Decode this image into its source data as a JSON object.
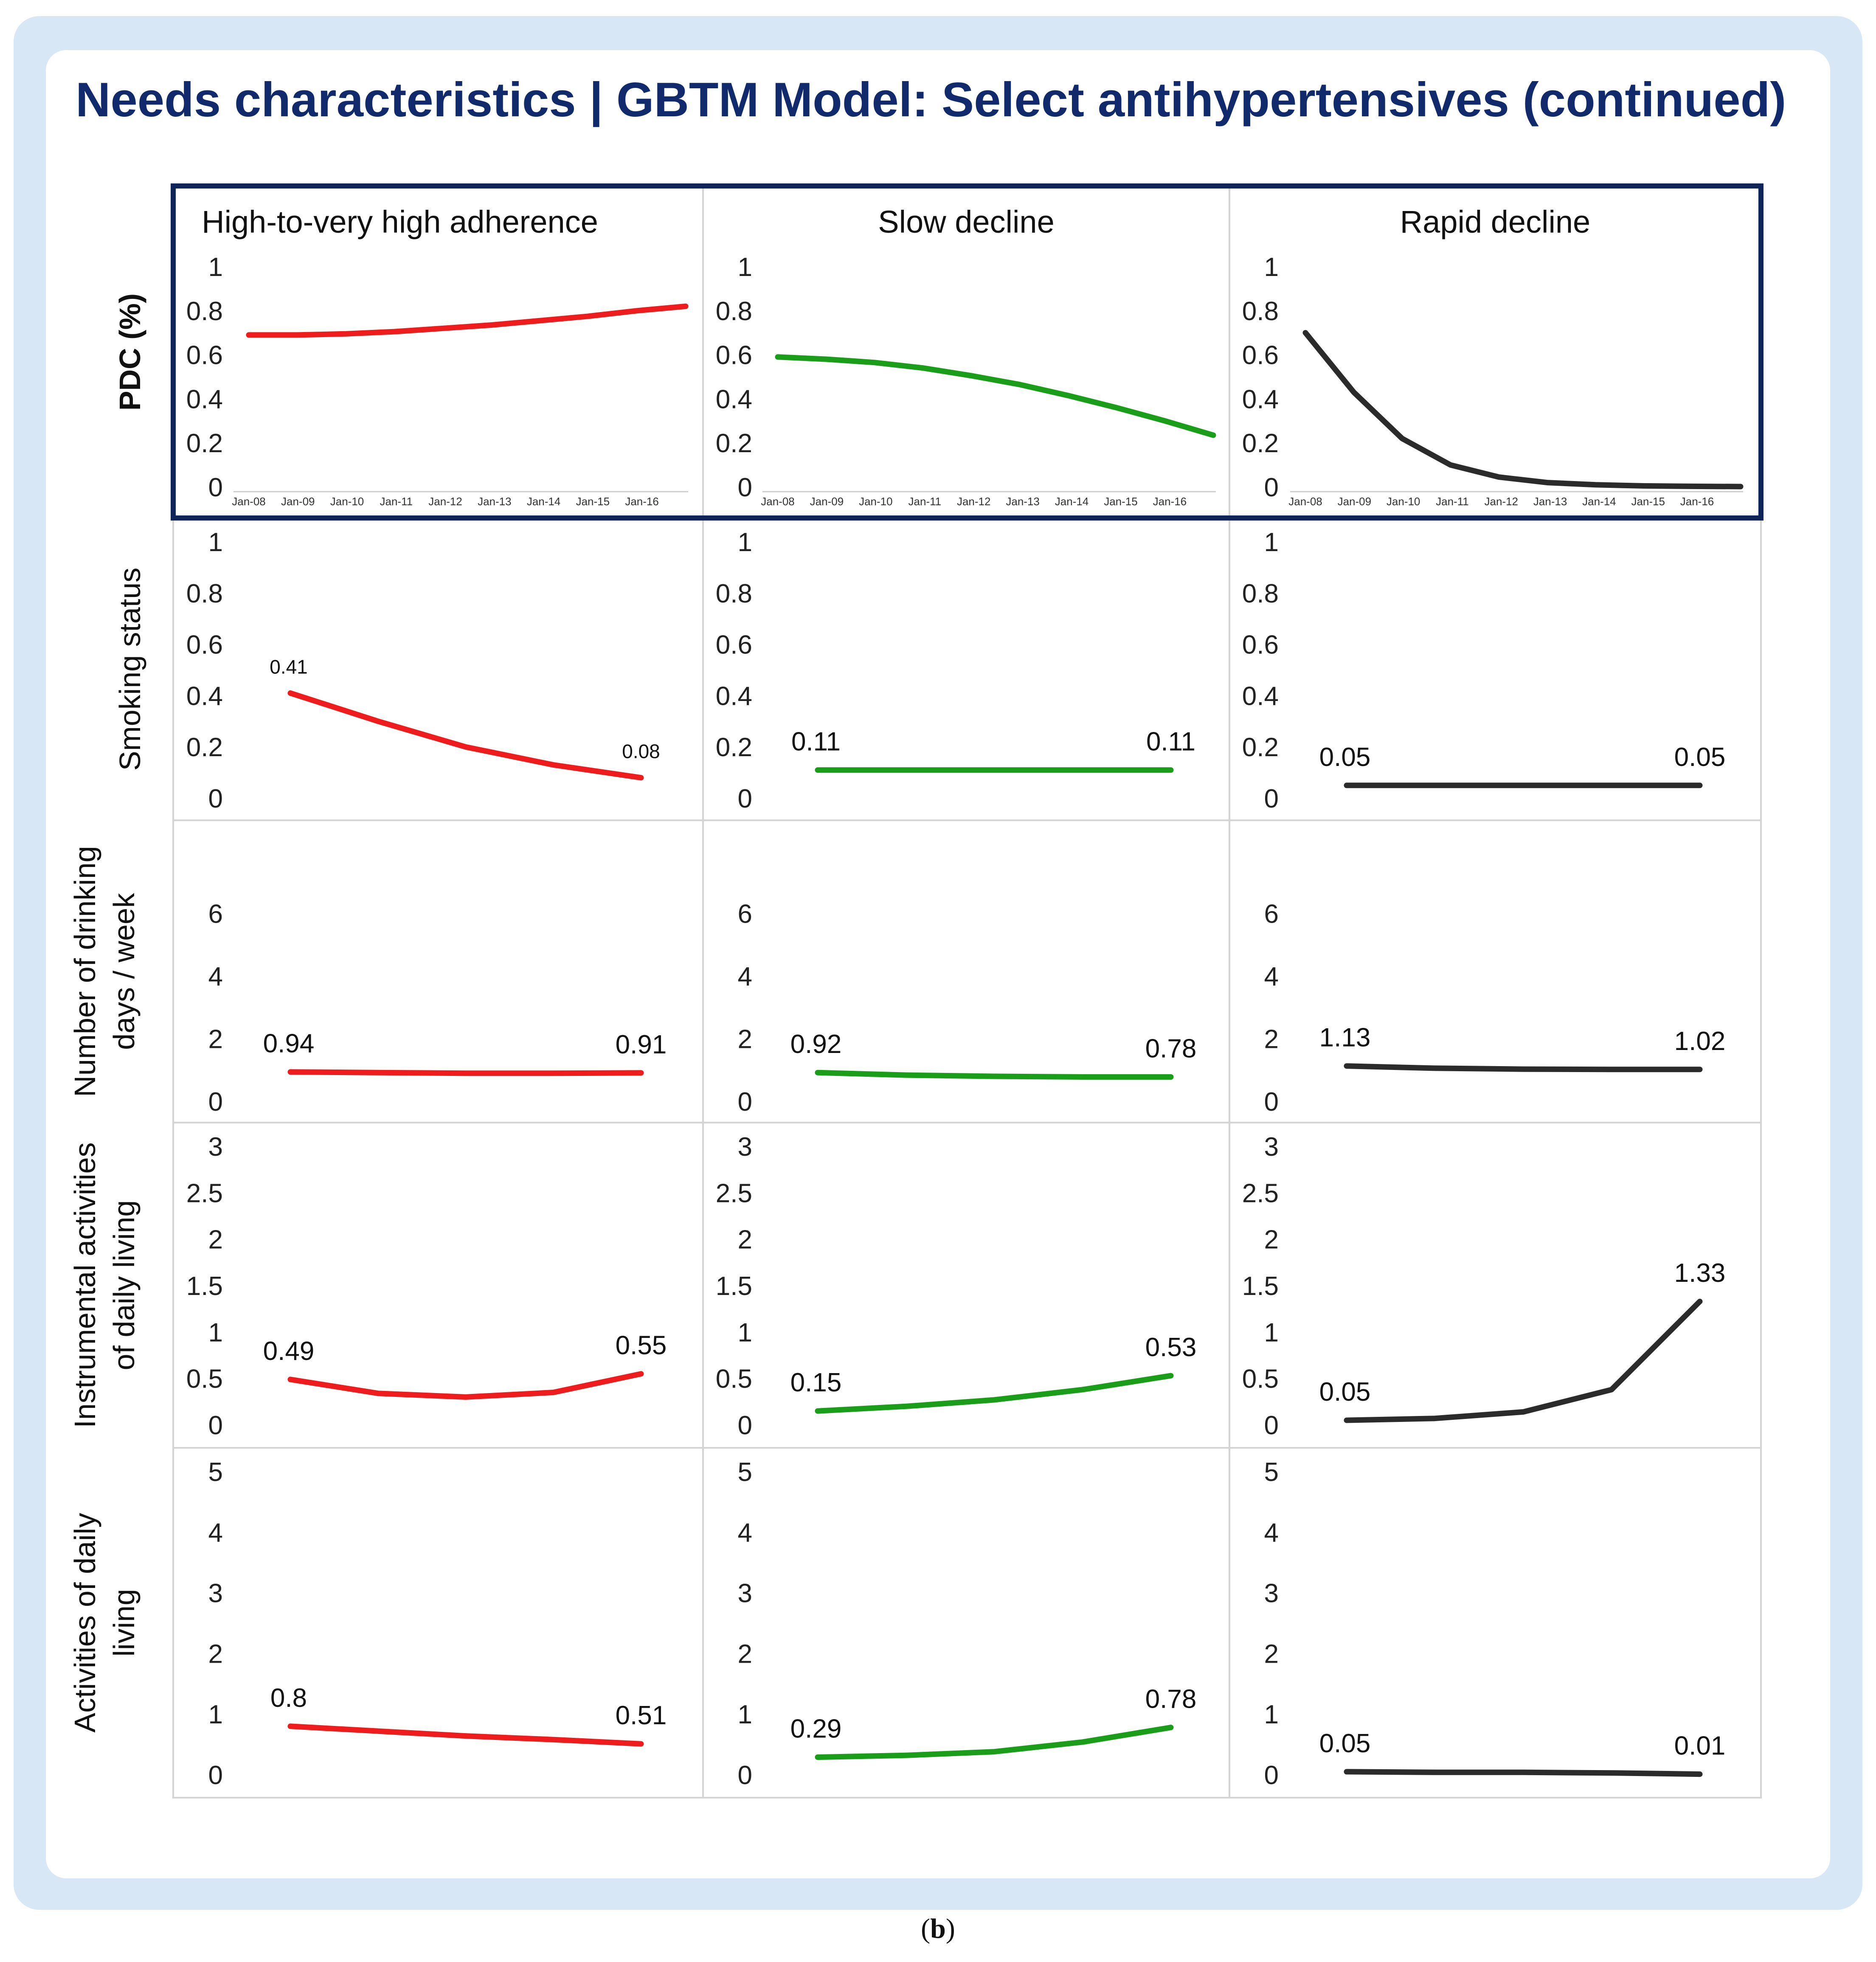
{
  "title": "Needs characteristics | GBTM Model: Select antihypertensives (continued)",
  "caption": {
    "open": "(",
    "letter": "b",
    "close": ")"
  },
  "colors": {
    "high": "#ee1c1c",
    "slow": "#1a9e1a",
    "rapid": "#2b2b2b",
    "frame": "#0f2459",
    "title": "#102a6b"
  },
  "chart_data": {
    "type": "line",
    "columns": [
      "High-to-very high adherence",
      "Slow decline",
      "Rapid decline"
    ],
    "x_time_labels": [
      "Jan-08",
      "Jan-09",
      "Jan-10",
      "Jan-11",
      "Jan-12",
      "Jan-13",
      "Jan-14",
      "Jan-15",
      "Jan-16"
    ],
    "rows": [
      {
        "ylabel": [
          "PDC (%)"
        ],
        "ylabel_bold": true,
        "ylim": [
          0,
          1
        ],
        "yticks": [
          "0",
          "0.2",
          "0.4",
          "0.6",
          "0.8",
          "1"
        ],
        "show_xticks": true,
        "x": [
          2008,
          2009,
          2010,
          2011,
          2012,
          2013,
          2014,
          2015,
          2016,
          2017
        ],
        "series": [
          {
            "name": "High-to-very high adherence",
            "values": [
              0.69,
              0.69,
              0.695,
              0.705,
              0.72,
              0.735,
              0.755,
              0.775,
              0.8,
              0.82
            ],
            "labels": []
          },
          {
            "name": "Slow decline",
            "values": [
              0.59,
              0.58,
              0.565,
              0.54,
              0.505,
              0.465,
              0.415,
              0.36,
              0.3,
              0.235
            ],
            "labels": []
          },
          {
            "name": "Rapid decline",
            "values": [
              0.7,
              0.43,
              0.22,
              0.1,
              0.045,
              0.02,
              0.01,
              0.005,
              0.003,
              0.002
            ],
            "labels": []
          }
        ]
      },
      {
        "ylabel": [
          "Smoking status"
        ],
        "ylabel_bold": false,
        "ylim": [
          0,
          1
        ],
        "yticks": [
          "0",
          "0.2",
          "0.4",
          "0.6",
          "0.8",
          "1"
        ],
        "show_xticks": false,
        "x": [
          1,
          2,
          3,
          4,
          5
        ],
        "series": [
          {
            "name": "High-to-very high adherence",
            "values": [
              0.41,
              0.3,
              0.2,
              0.13,
              0.08
            ],
            "labels": [
              "0.41",
              "0.08"
            ]
          },
          {
            "name": "Slow decline",
            "values": [
              0.11,
              0.11,
              0.11,
              0.11,
              0.11
            ],
            "labels": [
              "0.11",
              "0.11"
            ]
          },
          {
            "name": "Rapid decline",
            "values": [
              0.05,
              0.05,
              0.05,
              0.05,
              0.05
            ],
            "labels": [
              "0.05",
              "0.05"
            ]
          }
        ]
      },
      {
        "ylabel": [
          "Number of drinking",
          "days / week"
        ],
        "ylabel_bold": false,
        "ylim": [
          0,
          7
        ],
        "yticks": [
          "0",
          "2",
          "4",
          "6"
        ],
        "show_xticks": false,
        "x": [
          1,
          2,
          3,
          4,
          5
        ],
        "series": [
          {
            "name": "High-to-very high adherence",
            "values": [
              0.94,
              0.92,
              0.9,
              0.9,
              0.91
            ],
            "labels": [
              "0.94",
              "0.91"
            ]
          },
          {
            "name": "Slow decline",
            "values": [
              0.92,
              0.84,
              0.8,
              0.78,
              0.78
            ],
            "labels": [
              "0.92",
              "0.78"
            ]
          },
          {
            "name": "Rapid decline",
            "values": [
              1.13,
              1.06,
              1.03,
              1.02,
              1.02
            ],
            "labels": [
              "1.13",
              "1.02"
            ]
          }
        ]
      },
      {
        "ylabel": [
          "Instrumental activities",
          "of daily living"
        ],
        "ylabel_bold": false,
        "ylim": [
          0,
          3
        ],
        "yticks": [
          "0",
          "0.5",
          "1",
          "1.5",
          "2",
          "2.5",
          "3"
        ],
        "show_xticks": false,
        "x": [
          1,
          2,
          3,
          4,
          5
        ],
        "series": [
          {
            "name": "High-to-very high adherence",
            "values": [
              0.49,
              0.34,
              0.3,
              0.35,
              0.55
            ],
            "labels": [
              "0.49",
              "0.55"
            ]
          },
          {
            "name": "Slow decline",
            "values": [
              0.15,
              0.2,
              0.27,
              0.38,
              0.53
            ],
            "labels": [
              "0.15",
              "0.53"
            ]
          },
          {
            "name": "Rapid decline",
            "values": [
              0.05,
              0.07,
              0.14,
              0.38,
              1.33
            ],
            "labels": [
              "0.05",
              "1.33"
            ]
          }
        ]
      },
      {
        "ylabel": [
          "Activities of daily",
          "living"
        ],
        "ylabel_bold": false,
        "ylim": [
          0,
          5
        ],
        "yticks": [
          "0",
          "1",
          "2",
          "3",
          "4",
          "5"
        ],
        "show_xticks": false,
        "x": [
          1,
          2,
          3,
          4,
          5
        ],
        "series": [
          {
            "name": "High-to-very high adherence",
            "values": [
              0.8,
              0.72,
              0.64,
              0.58,
              0.51
            ],
            "labels": [
              "0.8",
              "0.51"
            ]
          },
          {
            "name": "Slow decline",
            "values": [
              0.29,
              0.32,
              0.38,
              0.54,
              0.78
            ],
            "labels": [
              "0.29",
              "0.78"
            ]
          },
          {
            "name": "Rapid decline",
            "values": [
              0.05,
              0.04,
              0.04,
              0.03,
              0.01
            ],
            "labels": [
              "0.05",
              "0.01"
            ]
          }
        ]
      }
    ]
  }
}
